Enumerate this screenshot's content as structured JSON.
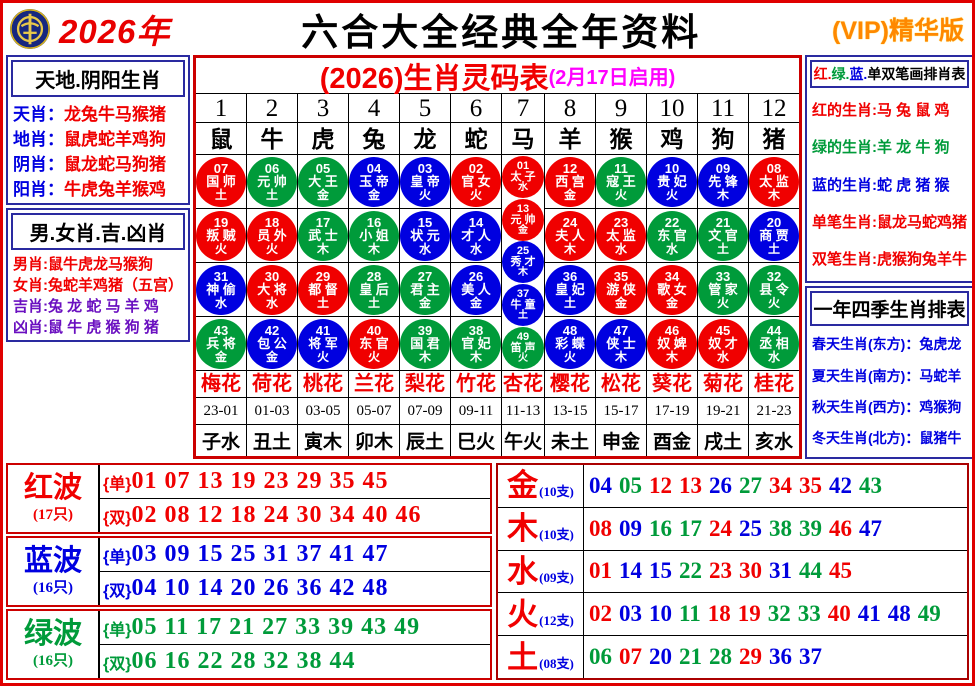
{
  "colors": {
    "red": "#f00000",
    "green": "#009b3a",
    "blue": "#0000e0",
    "purple": "#6a0fc0",
    "magenta": "#ff00ff"
  },
  "header": {
    "year": "2026年",
    "title": "六合大全经典全年资料",
    "vip": "(VIP)精华版",
    "logo": "liuhe-emblem"
  },
  "left_top": {
    "title": "天地.阴阳生肖",
    "rows": [
      {
        "label": "天肖",
        "value": "龙兔牛马猴猪"
      },
      {
        "label": "地肖",
        "value": "鼠虎蛇羊鸡狗"
      },
      {
        "label": "阴肖",
        "value": "鼠龙蛇马狗猪"
      },
      {
        "label": "阳肖",
        "value": "牛虎兔羊猴鸡"
      }
    ],
    "label_color": "#0000e0",
    "value_color": "#f00000"
  },
  "left_bottom": {
    "title": "男.女肖.吉.凶肖",
    "rows": [
      {
        "label": "男肖",
        "value": "鼠牛虎龙马猴狗",
        "color": "#f00000"
      },
      {
        "label": "女肖",
        "value": "兔蛇羊鸡猪（五宫）",
        "color": "#f00000"
      },
      {
        "label": "吉肖",
        "value": "兔 龙 蛇 马 羊 鸡",
        "color": "#6a0fc0"
      },
      {
        "label": "凶肖",
        "value": "鼠 牛 虎 猴 狗 猪",
        "color": "#6a0fc0"
      }
    ]
  },
  "main_table": {
    "title": "(2026)生肖灵码表",
    "subtitle": "(2月17日启用)",
    "columns": [
      {
        "num": "1",
        "zodiac": "鼠",
        "flower": "梅花",
        "hour": "23-01",
        "branch": "子水",
        "balls": [
          {
            "n": "07",
            "t": "国师",
            "e": "土",
            "c": "red"
          },
          {
            "n": "19",
            "t": "叛贼",
            "e": "火",
            "c": "red"
          },
          {
            "n": "31",
            "t": "神偷",
            "e": "水",
            "c": "blue"
          },
          {
            "n": "43",
            "t": "兵将",
            "e": "金",
            "c": "green"
          }
        ]
      },
      {
        "num": "2",
        "zodiac": "牛",
        "flower": "荷花",
        "hour": "01-03",
        "branch": "丑土",
        "balls": [
          {
            "n": "06",
            "t": "元帅",
            "e": "土",
            "c": "green"
          },
          {
            "n": "18",
            "t": "员外",
            "e": "火",
            "c": "red"
          },
          {
            "n": "30",
            "t": "大将",
            "e": "水",
            "c": "red"
          },
          {
            "n": "42",
            "t": "包公",
            "e": "金",
            "c": "blue"
          }
        ]
      },
      {
        "num": "3",
        "zodiac": "虎",
        "flower": "桃花",
        "hour": "03-05",
        "branch": "寅木",
        "balls": [
          {
            "n": "05",
            "t": "大王",
            "e": "金",
            "c": "green"
          },
          {
            "n": "17",
            "t": "武士",
            "e": "木",
            "c": "green"
          },
          {
            "n": "29",
            "t": "都督",
            "e": "土",
            "c": "red"
          },
          {
            "n": "41",
            "t": "将军",
            "e": "火",
            "c": "blue"
          }
        ]
      },
      {
        "num": "4",
        "zodiac": "兔",
        "flower": "兰花",
        "hour": "05-07",
        "branch": "卯木",
        "balls": [
          {
            "n": "04",
            "t": "玉帝",
            "e": "金",
            "c": "blue"
          },
          {
            "n": "16",
            "t": "小姐",
            "e": "木",
            "c": "green"
          },
          {
            "n": "28",
            "t": "皇后",
            "e": "土",
            "c": "green"
          },
          {
            "n": "40",
            "t": "东官",
            "e": "火",
            "c": "red"
          }
        ]
      },
      {
        "num": "5",
        "zodiac": "龙",
        "flower": "梨花",
        "hour": "07-09",
        "branch": "辰土",
        "balls": [
          {
            "n": "03",
            "t": "皇帝",
            "e": "火",
            "c": "blue"
          },
          {
            "n": "15",
            "t": "状元",
            "e": "水",
            "c": "blue"
          },
          {
            "n": "27",
            "t": "君主",
            "e": "金",
            "c": "green"
          },
          {
            "n": "39",
            "t": "国君",
            "e": "木",
            "c": "green"
          }
        ]
      },
      {
        "num": "6",
        "zodiac": "蛇",
        "flower": "竹花",
        "hour": "09-11",
        "branch": "巳火",
        "balls": [
          {
            "n": "02",
            "t": "官女",
            "e": "火",
            "c": "red"
          },
          {
            "n": "14",
            "t": "才人",
            "e": "水",
            "c": "blue"
          },
          {
            "n": "26",
            "t": "美人",
            "e": "金",
            "c": "blue"
          },
          {
            "n": "38",
            "t": "官妃",
            "e": "木",
            "c": "green"
          }
        ]
      },
      {
        "num": "7",
        "zodiac": "马",
        "flower": "杏花",
        "hour": "11-13",
        "branch": "午火",
        "small": true,
        "balls": [
          {
            "n": "01",
            "t": "太子",
            "e": "水",
            "c": "red"
          },
          {
            "n": "13",
            "t": "元帅",
            "e": "金",
            "c": "red"
          },
          {
            "n": "25",
            "t": "秀才",
            "e": "木",
            "c": "blue"
          },
          {
            "n": "37",
            "t": "牛童",
            "e": "土",
            "c": "blue"
          },
          {
            "n": "49",
            "t": "笛声",
            "e": "火",
            "c": "green"
          }
        ]
      },
      {
        "num": "8",
        "zodiac": "羊",
        "flower": "樱花",
        "hour": "13-15",
        "branch": "未土",
        "balls": [
          {
            "n": "12",
            "t": "西宫",
            "e": "金",
            "c": "red"
          },
          {
            "n": "24",
            "t": "夫人",
            "e": "木",
            "c": "red"
          },
          {
            "n": "36",
            "t": "皇妃",
            "e": "土",
            "c": "blue"
          },
          {
            "n": "48",
            "t": "彩蝶",
            "e": "火",
            "c": "blue"
          }
        ]
      },
      {
        "num": "9",
        "zodiac": "猴",
        "flower": "松花",
        "hour": "15-17",
        "branch": "申金",
        "balls": [
          {
            "n": "11",
            "t": "寇王",
            "e": "火",
            "c": "green"
          },
          {
            "n": "23",
            "t": "太监",
            "e": "水",
            "c": "red"
          },
          {
            "n": "35",
            "t": "游侠",
            "e": "金",
            "c": "red"
          },
          {
            "n": "47",
            "t": "侠士",
            "e": "木",
            "c": "blue"
          }
        ]
      },
      {
        "num": "10",
        "zodiac": "鸡",
        "flower": "葵花",
        "hour": "17-19",
        "branch": "酉金",
        "balls": [
          {
            "n": "10",
            "t": "贵妃",
            "e": "火",
            "c": "blue"
          },
          {
            "n": "22",
            "t": "东官",
            "e": "水",
            "c": "green"
          },
          {
            "n": "34",
            "t": "歌女",
            "e": "金",
            "c": "red"
          },
          {
            "n": "46",
            "t": "奴婢",
            "e": "木",
            "c": "red"
          }
        ]
      },
      {
        "num": "11",
        "zodiac": "狗",
        "flower": "菊花",
        "hour": "19-21",
        "branch": "戌土",
        "balls": [
          {
            "n": "09",
            "t": "先锋",
            "e": "木",
            "c": "blue"
          },
          {
            "n": "21",
            "t": "文官",
            "e": "土",
            "c": "green"
          },
          {
            "n": "33",
            "t": "管家",
            "e": "火",
            "c": "green"
          },
          {
            "n": "45",
            "t": "奴才",
            "e": "水",
            "c": "red"
          }
        ]
      },
      {
        "num": "12",
        "zodiac": "猪",
        "flower": "桂花",
        "hour": "21-23",
        "branch": "亥水",
        "balls": [
          {
            "n": "08",
            "t": "太监",
            "e": "木",
            "c": "red"
          },
          {
            "n": "20",
            "t": "商贾",
            "e": "土",
            "c": "blue"
          },
          {
            "n": "32",
            "t": "县令",
            "e": "火",
            "c": "green"
          },
          {
            "n": "44",
            "t": "丞相",
            "e": "水",
            "c": "green"
          }
        ]
      }
    ]
  },
  "right_top": {
    "title_segments": [
      {
        "text": "红.",
        "color": "#f00000"
      },
      {
        "text": "绿.",
        "color": "#009b3a"
      },
      {
        "text": "蓝.",
        "color": "#0000e0"
      },
      {
        "text": "单双笔画排肖表",
        "color": "#000000"
      }
    ],
    "rows": [
      {
        "label": "红的生肖",
        "value": "马 兔 鼠 鸡",
        "color": "#f00000"
      },
      {
        "label": "绿的生肖",
        "value": "羊 龙 牛 狗",
        "color": "#009b3a"
      },
      {
        "label": "蓝的生肖",
        "value": "蛇 虎 猪 猴",
        "color": "#0000e0"
      },
      {
        "label": "单笔生肖",
        "value": "鼠龙马蛇鸡猪",
        "color": "#f00000"
      },
      {
        "label": "双笔生肖",
        "value": "虎猴狗兔羊牛",
        "color": "#f00000"
      }
    ]
  },
  "right_bottom": {
    "title": "一年四季生肖排表",
    "rows": [
      {
        "label": "春天生肖(东方)",
        "value": "兔虎龙",
        "color": "#0000e0"
      },
      {
        "label": "夏天生肖(南方)",
        "value": "马蛇羊",
        "color": "#0000e0"
      },
      {
        "label": "秋天生肖(西方)",
        "value": "鸡猴狗",
        "color": "#0000e0"
      },
      {
        "label": "冬天生肖(北方)",
        "value": "鼠猪牛",
        "color": "#0000e0"
      }
    ]
  },
  "wave_tags": {
    "odd": "{单}",
    "even": "{双}"
  },
  "waves": [
    {
      "name": "红波",
      "count": "(17只)",
      "color": "#f00000",
      "odd": "01 07 13 19 23 29 35 45",
      "even": "02 08 12 18 24 30 34 40 46"
    },
    {
      "name": "蓝波",
      "count": "(16只)",
      "color": "#0000e0",
      "odd": "03 09 15 25 31 37 41 47",
      "even": "04 10 14 20 26 36 42 48"
    },
    {
      "name": "绿波",
      "count": "(16只)",
      "color": "#009b3a",
      "odd": "05 11 17 21 27 33 39 43 49",
      "even": "06 16 22 28 32 38 44"
    }
  ],
  "elements": [
    {
      "name": "金",
      "count": "(10支)",
      "numbers": [
        "04",
        "05",
        "12",
        "13",
        "26",
        "27",
        "34",
        "35",
        "42",
        "43"
      ]
    },
    {
      "name": "木",
      "count": "(10支)",
      "numbers": [
        "08",
        "09",
        "16",
        "17",
        "24",
        "25",
        "38",
        "39",
        "46",
        "47"
      ]
    },
    {
      "name": "水",
      "count": "(09支)",
      "numbers": [
        "01",
        "14",
        "15",
        "22",
        "23",
        "30",
        "31",
        "44",
        "45"
      ]
    },
    {
      "name": "火",
      "count": "(12支)",
      "numbers": [
        "02",
        "03",
        "10",
        "11",
        "18",
        "19",
        "32",
        "33",
        "40",
        "41",
        "48",
        "49"
      ]
    },
    {
      "name": "土",
      "count": "(08支)",
      "numbers": [
        "06",
        "07",
        "20",
        "21",
        "28",
        "29",
        "36",
        "37"
      ]
    }
  ]
}
